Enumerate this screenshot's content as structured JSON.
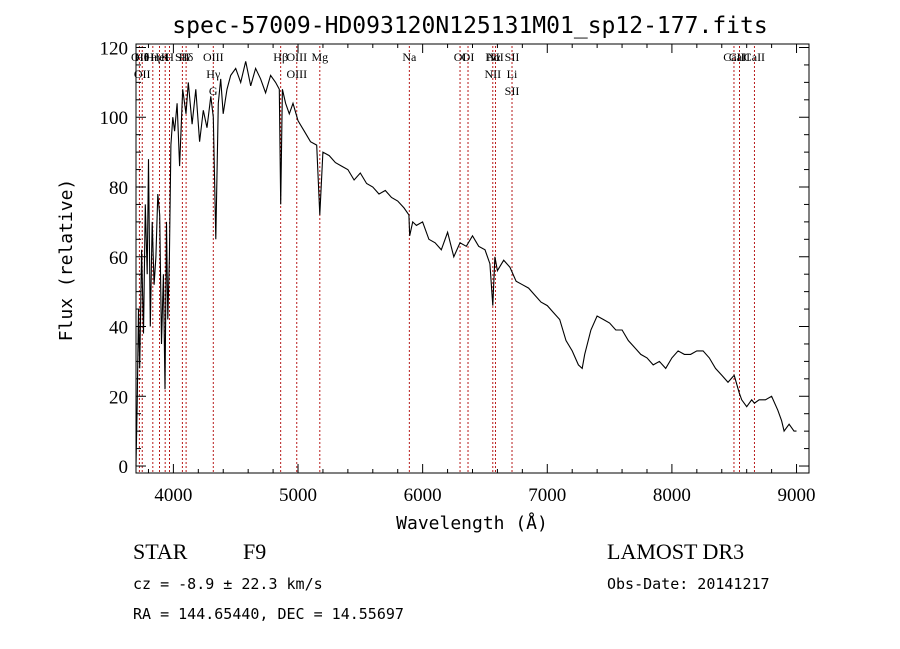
{
  "chart_data": {
    "type": "line",
    "title": "spec-57009-HD093120N125131M01_sp12-177.fits",
    "xlabel": "Wavelength (Å)",
    "ylabel": "Flux (relative)",
    "xlim": [
      3700,
      9100
    ],
    "ylim": [
      -2,
      121
    ],
    "xticks": [
      4000,
      5000,
      6000,
      7000,
      8000,
      9000
    ],
    "yticks": [
      0,
      20,
      40,
      60,
      80,
      100,
      120
    ],
    "grid": false,
    "series": [
      {
        "name": "flux",
        "x": [
          3700,
          3710,
          3720,
          3730,
          3745,
          3760,
          3775,
          3790,
          3800,
          3815,
          3830,
          3845,
          3860,
          3875,
          3890,
          3905,
          3920,
          3933,
          3945,
          3955,
          3968,
          3980,
          3995,
          4010,
          4030,
          4050,
          4075,
          4101,
          4120,
          4150,
          4180,
          4210,
          4240,
          4270,
          4300,
          4320,
          4340,
          4360,
          4380,
          4400,
          4430,
          4460,
          4500,
          4540,
          4580,
          4620,
          4660,
          4700,
          4740,
          4780,
          4820,
          4850,
          4861,
          4875,
          4900,
          4930,
          4960,
          5000,
          5050,
          5100,
          5150,
          5175,
          5200,
          5250,
          5300,
          5350,
          5400,
          5450,
          5500,
          5550,
          5600,
          5650,
          5700,
          5750,
          5800,
          5850,
          5890,
          5896,
          5920,
          5950,
          6000,
          6050,
          6100,
          6150,
          6200,
          6250,
          6300,
          6350,
          6400,
          6450,
          6500,
          6540,
          6563,
          6580,
          6600,
          6650,
          6700,
          6750,
          6800,
          6850,
          6900,
          6950,
          7000,
          7050,
          7100,
          7150,
          7200,
          7250,
          7280,
          7300,
          7350,
          7400,
          7450,
          7500,
          7550,
          7600,
          7650,
          7700,
          7750,
          7800,
          7850,
          7900,
          7950,
          8000,
          8050,
          8100,
          8150,
          8200,
          8250,
          8300,
          8350,
          8400,
          8450,
          8500,
          8540,
          8560,
          8600,
          8640,
          8662,
          8700,
          8750,
          8800,
          8850,
          8880,
          8900,
          8940,
          8980,
          9000
        ],
        "y": [
          0,
          18,
          45,
          28,
          62,
          38,
          75,
          55,
          88,
          40,
          70,
          52,
          60,
          78,
          72,
          35,
          55,
          22,
          70,
          42,
          60,
          92,
          100,
          96,
          104,
          86,
          108,
          101,
          110,
          98,
          108,
          93,
          102,
          97,
          106,
          100,
          65,
          104,
          111,
          101,
          108,
          112,
          114,
          110,
          116,
          109,
          114,
          111,
          107,
          112,
          110,
          108,
          75,
          108,
          104,
          101,
          104,
          99,
          96,
          93,
          92,
          72,
          90,
          89,
          87,
          86,
          85,
          82,
          84,
          81,
          80,
          78,
          79,
          77,
          76,
          74,
          72,
          66,
          70,
          69,
          70,
          65,
          64,
          62,
          67,
          60,
          64,
          63,
          66,
          63,
          62,
          58,
          46,
          60,
          56,
          59,
          57,
          53,
          52,
          51,
          49,
          47,
          46,
          44,
          42,
          36,
          33,
          29,
          28,
          32,
          39,
          43,
          42,
          41,
          39,
          39,
          36,
          34,
          32,
          31,
          29,
          30,
          28,
          31,
          33,
          32,
          32,
          33,
          33,
          31,
          28,
          26,
          24,
          26,
          21,
          19,
          17,
          19,
          18,
          19,
          19,
          20,
          16,
          13,
          10,
          12,
          10,
          10
        ]
      }
    ],
    "lines": [
      {
        "labels": [
          "Hθ",
          "OII"
        ],
        "x": 3750
      },
      {
        "labels": [
          "OII"
        ],
        "x": 3727
      },
      {
        "labels": [
          "Hη"
        ],
        "x": 3835
      },
      {
        "labels": [
          "HeI"
        ],
        "x": 3889
      },
      {
        "labels": [
          "K"
        ],
        "x": 3934
      },
      {
        "labels": [
          "H"
        ],
        "x": 3969
      },
      {
        "labels": [
          "SII"
        ],
        "x": 4072
      },
      {
        "labels": [
          "Hδ"
        ],
        "x": 4102
      },
      {
        "labels": [
          "OIII",
          "Hγ",
          "G"
        ],
        "x": 4320
      },
      {
        "labels": [
          "Hβ"
        ],
        "x": 4861
      },
      {
        "labels": [
          "OIII",
          "OIII"
        ],
        "x": 4990
      },
      {
        "labels": [
          "Mg"
        ],
        "x": 5175
      },
      {
        "labels": [
          "Na"
        ],
        "x": 5893
      },
      {
        "labels": [
          "OI"
        ],
        "x": 6300
      },
      {
        "labels": [
          "OI"
        ],
        "x": 6364
      },
      {
        "labels": [
          "Hα",
          "NII"
        ],
        "x": 6563
      },
      {
        "labels": [
          "NII"
        ],
        "x": 6584
      },
      {
        "labels": [
          "SII",
          "Li",
          "SII"
        ],
        "x": 6717
      },
      {
        "labels": [
          "CaII"
        ],
        "x": 8498
      },
      {
        "labels": [
          "CaII"
        ],
        "x": 8542
      },
      {
        "labels": [
          "CaII"
        ],
        "x": 8662
      }
    ]
  },
  "info": {
    "object_type": "STAR",
    "subclass": "F9",
    "survey": "LAMOST DR3",
    "cz": "cz = -8.9 ± 22.3 km/s",
    "obs_date": "Obs-Date: 20141217",
    "coords": "RA = 144.65440, DEC =  14.55697"
  },
  "colors": {
    "spectrum": "#000000",
    "line_markers": "#b00000"
  }
}
